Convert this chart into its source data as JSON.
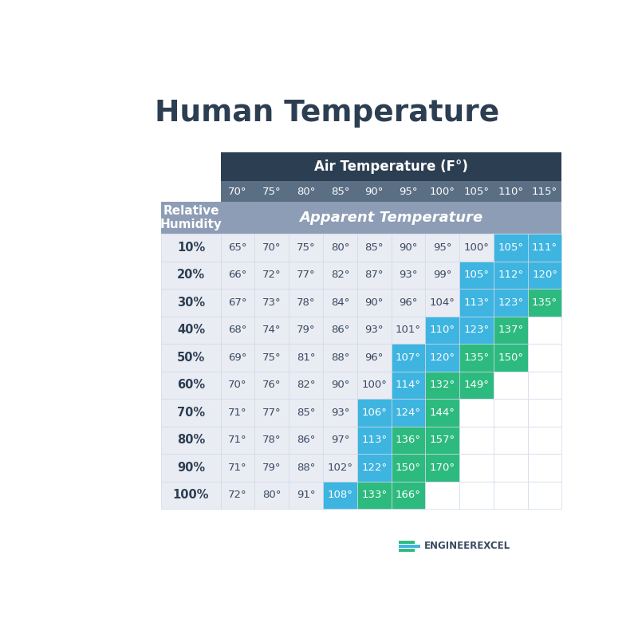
{
  "title": "Human Temperature",
  "col_header": "Air Temperature (F°)",
  "row_header": "Relative\nHumidity",
  "sub_header": "Apparent Temperature",
  "air_temps": [
    "70°",
    "75°",
    "80°",
    "85°",
    "90°",
    "95°",
    "100°",
    "105°",
    "110°",
    "115°"
  ],
  "humidities": [
    "10%",
    "20%",
    "30%",
    "40%",
    "50%",
    "60%",
    "70%",
    "80%",
    "90%",
    "100%"
  ],
  "table_data": [
    [
      "65°",
      "70°",
      "75°",
      "80°",
      "85°",
      "90°",
      "95°",
      "100°",
      "105°",
      "111°"
    ],
    [
      "66°",
      "72°",
      "77°",
      "82°",
      "87°",
      "93°",
      "99°",
      "105°",
      "112°",
      "120°"
    ],
    [
      "67°",
      "73°",
      "78°",
      "84°",
      "90°",
      "96°",
      "104°",
      "113°",
      "123°",
      "135°"
    ],
    [
      "68°",
      "74°",
      "79°",
      "86°",
      "93°",
      "101°",
      "110°",
      "123°",
      "137°",
      ""
    ],
    [
      "69°",
      "75°",
      "81°",
      "88°",
      "96°",
      "107°",
      "120°",
      "135°",
      "150°",
      ""
    ],
    [
      "70°",
      "76°",
      "82°",
      "90°",
      "100°",
      "114°",
      "132°",
      "149°",
      "",
      ""
    ],
    [
      "71°",
      "77°",
      "85°",
      "93°",
      "106°",
      "124°",
      "144°",
      "",
      "",
      ""
    ],
    [
      "71°",
      "78°",
      "86°",
      "97°",
      "113°",
      "136°",
      "157°",
      "",
      "",
      ""
    ],
    [
      "71°",
      "79°",
      "88°",
      "102°",
      "122°",
      "150°",
      "170°",
      "",
      "",
      ""
    ],
    [
      "72°",
      "80°",
      "91°",
      "108°",
      "133°",
      "166°",
      "",
      "",
      "",
      ""
    ]
  ],
  "cell_colors": [
    [
      "none",
      "none",
      "none",
      "none",
      "none",
      "none",
      "none",
      "none",
      "blue",
      "blue"
    ],
    [
      "none",
      "none",
      "none",
      "none",
      "none",
      "none",
      "none",
      "blue",
      "blue",
      "blue"
    ],
    [
      "none",
      "none",
      "none",
      "none",
      "none",
      "none",
      "none",
      "blue",
      "blue",
      "green"
    ],
    [
      "none",
      "none",
      "none",
      "none",
      "none",
      "none",
      "blue",
      "blue",
      "green",
      "empty"
    ],
    [
      "none",
      "none",
      "none",
      "none",
      "none",
      "blue",
      "blue",
      "green",
      "green",
      "empty"
    ],
    [
      "none",
      "none",
      "none",
      "none",
      "none",
      "blue",
      "green",
      "green",
      "empty",
      "empty"
    ],
    [
      "none",
      "none",
      "none",
      "none",
      "blue",
      "blue",
      "green",
      "empty",
      "empty",
      "empty"
    ],
    [
      "none",
      "none",
      "none",
      "none",
      "blue",
      "green",
      "green",
      "empty",
      "empty",
      "empty"
    ],
    [
      "none",
      "none",
      "none",
      "none",
      "blue",
      "green",
      "green",
      "empty",
      "empty",
      "empty"
    ],
    [
      "none",
      "none",
      "none",
      "blue",
      "green",
      "green",
      "empty",
      "empty",
      "empty",
      "empty"
    ]
  ],
  "bg_color": "#ffffff",
  "header_bg": "#2c3e52",
  "air_temp_row_bg": "#5a6e84",
  "sub_header_bg": "#8d9db5",
  "row_header_label_bg": "#8d9db5",
  "data_bg": "#eaecf4",
  "blue_color": "#3eb4e0",
  "green_color": "#2dba7e",
  "header_text_color": "#ffffff",
  "data_text_color": "#3a4a60",
  "row_label_text_color": "#2c3e52",
  "title_color": "#2c3e52",
  "logo_text": "ENGINEEREXCEL",
  "logo_color": "#3a4a60",
  "logo_green": "#2dba7e",
  "logo_blue": "#3eb4e0"
}
